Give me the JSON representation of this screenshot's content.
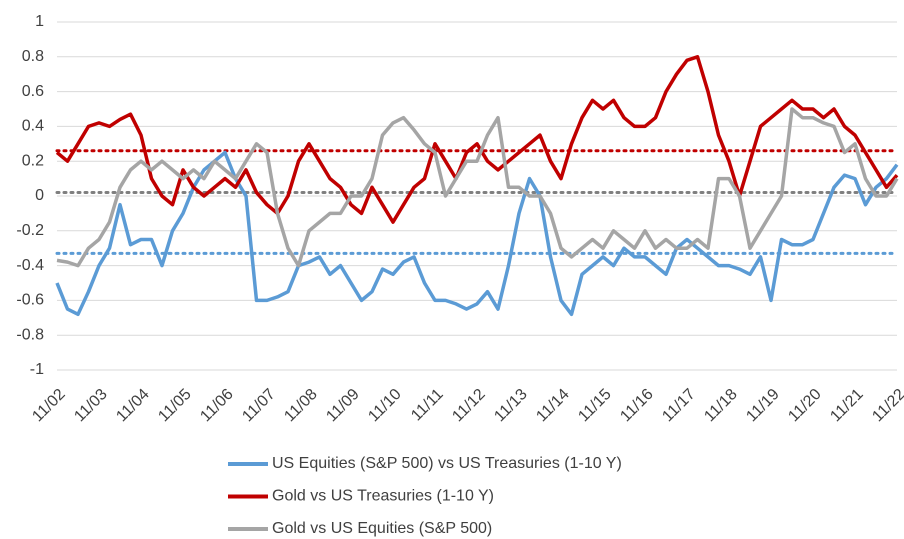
{
  "chart_data": {
    "type": "line",
    "categories": [
      "11/02",
      null,
      null,
      null,
      "11/03",
      null,
      null,
      null,
      "11/04",
      null,
      null,
      null,
      "11/05",
      null,
      null,
      null,
      "11/06",
      null,
      null,
      null,
      "11/07",
      null,
      null,
      null,
      "11/08",
      null,
      null,
      null,
      "11/09",
      null,
      null,
      null,
      "11/10",
      null,
      null,
      null,
      "11/11",
      null,
      null,
      null,
      "11/12",
      null,
      null,
      null,
      "11/13",
      null,
      null,
      null,
      "11/14",
      null,
      null,
      null,
      "11/15",
      null,
      null,
      null,
      "11/16",
      null,
      null,
      null,
      "11/17",
      null,
      null,
      null,
      "11/18",
      null,
      null,
      null,
      "11/19",
      null,
      null,
      null,
      "11/20",
      null,
      null,
      null,
      "11/21",
      null,
      null,
      null,
      "11/22"
    ],
    "series": [
      {
        "name": "US Equities (S&P 500) vs US Treasuries (1-10 Y)",
        "color": "#5b9bd5",
        "values": [
          -0.5,
          -0.65,
          -0.68,
          -0.55,
          -0.4,
          -0.3,
          -0.05,
          -0.28,
          -0.25,
          -0.25,
          -0.4,
          -0.2,
          -0.1,
          0.05,
          0.15,
          0.2,
          0.25,
          0.1,
          0.0,
          -0.6,
          -0.6,
          -0.58,
          -0.55,
          -0.4,
          -0.38,
          -0.35,
          -0.45,
          -0.4,
          -0.5,
          -0.6,
          -0.55,
          -0.42,
          -0.45,
          -0.38,
          -0.35,
          -0.5,
          -0.6,
          -0.6,
          -0.62,
          -0.65,
          -0.62,
          -0.55,
          -0.65,
          -0.4,
          -0.1,
          0.1,
          0.0,
          -0.35,
          -0.6,
          -0.68,
          -0.45,
          -0.4,
          -0.35,
          -0.4,
          -0.3,
          -0.35,
          -0.35,
          -0.4,
          -0.45,
          -0.3,
          -0.25,
          -0.3,
          -0.35,
          -0.4,
          -0.4,
          -0.42,
          -0.45,
          -0.35,
          -0.6,
          -0.25,
          -0.28,
          -0.28,
          -0.25,
          -0.1,
          0.05,
          0.12,
          0.1,
          -0.05,
          0.05,
          0.1,
          0.18
        ]
      },
      {
        "name": "Gold vs US Treasuries (1-10 Y)",
        "color": "#c00000",
        "values": [
          0.25,
          0.2,
          0.3,
          0.4,
          0.42,
          0.4,
          0.44,
          0.47,
          0.35,
          0.1,
          0.0,
          -0.05,
          0.15,
          0.05,
          0.0,
          0.05,
          0.1,
          0.05,
          0.15,
          0.02,
          -0.05,
          -0.1,
          0.0,
          0.2,
          0.3,
          0.2,
          0.1,
          0.05,
          -0.05,
          -0.1,
          0.05,
          -0.05,
          -0.15,
          -0.05,
          0.05,
          0.1,
          0.3,
          0.2,
          0.1,
          0.25,
          0.3,
          0.2,
          0.15,
          0.2,
          0.25,
          0.3,
          0.35,
          0.2,
          0.1,
          0.3,
          0.45,
          0.55,
          0.5,
          0.55,
          0.45,
          0.4,
          0.4,
          0.45,
          0.6,
          0.7,
          0.78,
          0.8,
          0.6,
          0.35,
          0.2,
          0.0,
          0.2,
          0.4,
          0.45,
          0.5,
          0.55,
          0.5,
          0.5,
          0.45,
          0.5,
          0.4,
          0.35,
          0.25,
          0.15,
          0.05,
          0.12
        ]
      },
      {
        "name": "Gold vs US Equities (S&P 500)",
        "color": "#a5a5a5",
        "values": [
          -0.37,
          -0.38,
          -0.4,
          -0.3,
          -0.25,
          -0.15,
          0.05,
          0.15,
          0.2,
          0.15,
          0.2,
          0.15,
          0.1,
          0.15,
          0.1,
          0.2,
          0.15,
          0.1,
          0.2,
          0.3,
          0.25,
          -0.1,
          -0.3,
          -0.4,
          -0.2,
          -0.15,
          -0.1,
          -0.1,
          0.0,
          0.0,
          0.1,
          0.35,
          0.42,
          0.45,
          0.38,
          0.3,
          0.25,
          0.0,
          0.1,
          0.2,
          0.2,
          0.35,
          0.45,
          0.05,
          0.05,
          0.0,
          0.0,
          -0.1,
          -0.3,
          -0.35,
          -0.3,
          -0.25,
          -0.3,
          -0.2,
          -0.25,
          -0.3,
          -0.2,
          -0.3,
          -0.25,
          -0.3,
          -0.3,
          -0.25,
          -0.3,
          0.1,
          0.1,
          0.0,
          -0.3,
          -0.2,
          -0.1,
          0.0,
          0.5,
          0.45,
          0.45,
          0.42,
          0.4,
          0.25,
          0.3,
          0.1,
          0.0,
          0.0,
          0.1
        ]
      }
    ],
    "hlines": [
      {
        "value": 0.26,
        "color": "#c00000"
      },
      {
        "value": 0.02,
        "color": "#7f7f7f"
      },
      {
        "value": -0.33,
        "color": "#5b9bd5"
      }
    ],
    "ylim": [
      -1,
      1
    ],
    "yticks": [
      -1,
      -0.8,
      -0.6,
      -0.4,
      -0.2,
      0,
      0.2,
      0.4,
      0.6,
      0.8,
      1
    ],
    "grid": true
  }
}
